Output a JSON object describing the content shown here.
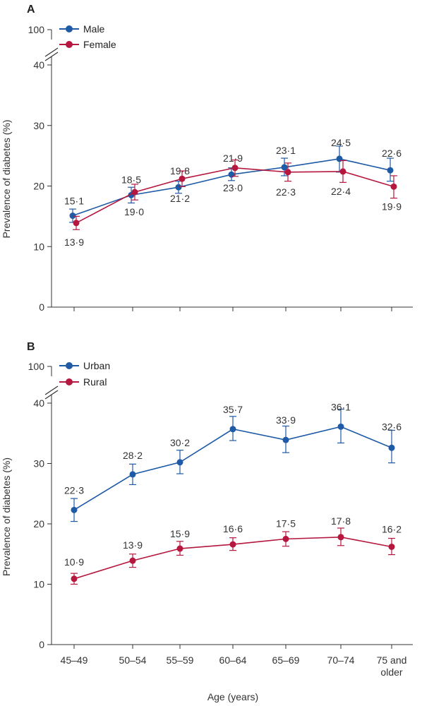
{
  "chart_data": [
    {
      "panel": "A",
      "type": "line",
      "ylabel": "Prevalence of diabetes (%)",
      "yticks": [
        0,
        10,
        20,
        30,
        40,
        100
      ],
      "ylim": [
        0,
        100
      ],
      "axis_break": [
        42,
        98
      ],
      "categories": [
        "45–49",
        "50–54",
        "55–59",
        "60–64",
        "65–69",
        "70–74",
        "75 and older"
      ],
      "legend_position": "top-left",
      "series": [
        {
          "name": "Male",
          "color": "#1f5aa6",
          "values": [
            15.1,
            18.5,
            19.8,
            21.9,
            23.1,
            24.5,
            22.6
          ],
          "labels": [
            "15·1",
            "18·5",
            "19·8",
            "21·9",
            "23·1",
            "24·5",
            "22·6"
          ],
          "ci_low": [
            14.0,
            17.2,
            18.8,
            20.9,
            21.7,
            22.3,
            20.8
          ],
          "ci_high": [
            16.2,
            19.8,
            20.8,
            23.0,
            24.6,
            26.6,
            24.6
          ]
        },
        {
          "name": "Female",
          "color": "#b5173f",
          "values": [
            13.9,
            19.0,
            21.2,
            23.0,
            22.3,
            22.4,
            19.9
          ],
          "labels": [
            "13·9",
            "19·0",
            "21·2",
            "23·0",
            "22·3",
            "22·4",
            "19·9"
          ],
          "ci_low": [
            12.8,
            17.7,
            19.9,
            21.6,
            20.8,
            20.6,
            18.0
          ],
          "ci_high": [
            15.0,
            20.3,
            22.5,
            24.3,
            23.8,
            24.2,
            21.7
          ]
        }
      ]
    },
    {
      "panel": "B",
      "type": "line",
      "ylabel": "Prevalence of diabetes (%)",
      "yticks": [
        0,
        10,
        20,
        30,
        40,
        100
      ],
      "ylim": [
        0,
        100
      ],
      "axis_break": [
        42,
        98
      ],
      "categories": [
        "45–49",
        "50–54",
        "55–59",
        "60–64",
        "65–69",
        "70–74",
        "75 and older"
      ],
      "xlabel": "Age (years)",
      "legend_position": "top-left",
      "series": [
        {
          "name": "Urban",
          "color": "#1f5aa6",
          "values": [
            22.3,
            28.2,
            30.2,
            35.7,
            33.9,
            36.1,
            32.6
          ],
          "labels": [
            "22·3",
            "28·2",
            "30·2",
            "35·7",
            "33·9",
            "36·1",
            "32·6"
          ],
          "ci_low": [
            20.4,
            26.5,
            28.3,
            33.8,
            31.8,
            33.4,
            30.1
          ],
          "ci_high": [
            24.2,
            29.9,
            32.2,
            37.8,
            36.2,
            39.0,
            35.5
          ]
        },
        {
          "name": "Rural",
          "color": "#b5173f",
          "values": [
            10.9,
            13.9,
            15.9,
            16.6,
            17.5,
            17.8,
            16.2
          ],
          "labels": [
            "10·9",
            "13·9",
            "15·9",
            "16·6",
            "17·5",
            "17·8",
            "16·2"
          ],
          "ci_low": [
            10.0,
            12.8,
            14.8,
            15.6,
            16.3,
            16.4,
            14.9
          ],
          "ci_high": [
            11.8,
            15.0,
            17.1,
            17.7,
            18.7,
            19.3,
            17.6
          ]
        }
      ]
    }
  ]
}
